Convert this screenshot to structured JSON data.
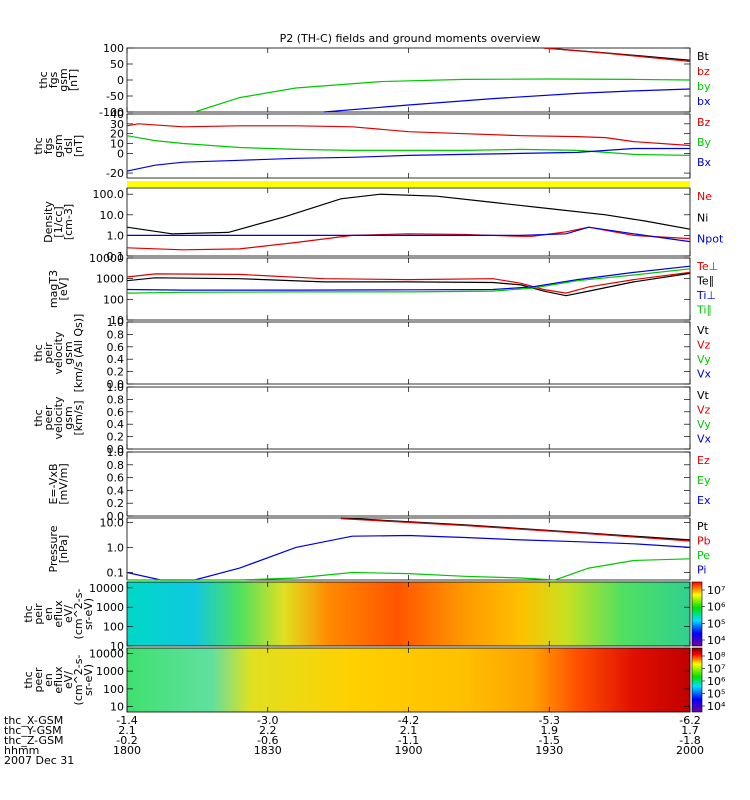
{
  "title": "P2 (TH-C) fields and ground moments overview",
  "colors": {
    "black": "#000000",
    "red": "#e00000",
    "green": "#00c800",
    "blue": "#0000e0",
    "yellow": "#ffff00"
  },
  "chart_data": {
    "type": "line",
    "x_ticks": [
      "1800",
      "1830",
      "1900",
      "1930",
      "2000"
    ],
    "footer": {
      "rows": [
        {
          "label": "thc_X-GSM",
          "values": [
            "-1.4",
            "-3.0",
            "-4.2",
            "-5.3",
            "-6.2"
          ]
        },
        {
          "label": "thc_Y-GSM",
          "values": [
            "2.1",
            "2.2",
            "2.1",
            "1.9",
            "1.7"
          ]
        },
        {
          "label": "thc_Z-GSM",
          "values": [
            "-0.2",
            "-0.6",
            "-1.1",
            "-1.5",
            "-1.8"
          ]
        },
        {
          "label": "hhmm",
          "values": [
            "1800",
            "1830",
            "1900",
            "1930",
            "2000"
          ]
        }
      ],
      "date": "2007 Dec 31"
    },
    "panels": [
      {
        "id": "fgs_gsm",
        "ylabel": [
          "thc",
          "fgs",
          "gsm",
          "[nT]"
        ],
        "ylim": [
          -100,
          100
        ],
        "yticks": [
          "100",
          "50",
          "0",
          "-50",
          "-100"
        ],
        "legend": [
          {
            "label": "Bt",
            "color": "black"
          },
          {
            "label": "bz",
            "color": "red"
          },
          {
            "label": "by",
            "color": "green"
          },
          {
            "label": "bx",
            "color": "blue"
          }
        ],
        "series": [
          {
            "name": "Bt",
            "color": "black",
            "x": [
              0.74,
              0.85,
              1.0
            ],
            "y": [
              100,
              85,
              62
            ]
          },
          {
            "name": "bz",
            "color": "red",
            "x": [
              0.74,
              0.85,
              1.0
            ],
            "y": [
              100,
              84,
              58
            ]
          },
          {
            "name": "by",
            "color": "green",
            "x": [
              0.12,
              0.2,
              0.3,
              0.45,
              0.6,
              0.75,
              0.9,
              1.0
            ],
            "y": [
              -100,
              -55,
              -25,
              -5,
              2,
              3,
              2,
              0
            ]
          },
          {
            "name": "bx",
            "color": "blue",
            "x": [
              0.35,
              0.5,
              0.65,
              0.8,
              0.9,
              1.0
            ],
            "y": [
              -100,
              -78,
              -58,
              -42,
              -34,
              -28
            ]
          }
        ]
      },
      {
        "id": "fgs_dsl",
        "ylabel": [
          "thc",
          "fgs",
          "gsm",
          "dsl",
          "[nT]"
        ],
        "ylim": [
          -25,
          40
        ],
        "yticks": [
          "40",
          "30",
          "20",
          "10",
          "0",
          "-20"
        ],
        "legend": [
          {
            "label": "Bz",
            "color": "red"
          },
          {
            "label": "By",
            "color": "green"
          },
          {
            "label": "Bx",
            "color": "blue"
          }
        ],
        "series": [
          {
            "name": "Bz",
            "color": "red",
            "x": [
              0.0,
              0.02,
              0.1,
              0.2,
              0.3,
              0.4,
              0.5,
              0.6,
              0.7,
              0.8,
              0.85,
              0.9,
              1.0
            ],
            "y": [
              28,
              30,
              27,
              28,
              28,
              27,
              22,
              20,
              18,
              17,
              16,
              12,
              8
            ]
          },
          {
            "name": "By",
            "color": "green",
            "x": [
              0.0,
              0.05,
              0.1,
              0.2,
              0.3,
              0.4,
              0.5,
              0.6,
              0.7,
              0.8,
              0.9,
              1.0
            ],
            "y": [
              18,
              13,
              10,
              6,
              4,
              3,
              3,
              3,
              4,
              3,
              -1,
              -2
            ]
          },
          {
            "name": "Bx",
            "color": "blue",
            "x": [
              0.0,
              0.05,
              0.1,
              0.2,
              0.3,
              0.4,
              0.5,
              0.6,
              0.7,
              0.8,
              0.9,
              1.0
            ],
            "y": [
              -18,
              -12,
              -9,
              -7,
              -5,
              -4,
              -2,
              -1,
              0,
              1,
              5,
              5
            ]
          }
        ]
      },
      {
        "id": "density",
        "ylabel": [
          "Density",
          "[1/cc]",
          "[cm-3]"
        ],
        "log": true,
        "ylim": [
          0.1,
          200
        ],
        "yticks": [
          "100.0",
          "10.0",
          "1.0",
          "0.1"
        ],
        "legend": [
          {
            "label": "Ne",
            "color": "red"
          },
          {
            "label": "Ni",
            "color": "black"
          },
          {
            "label": "Npot",
            "color": "blue"
          }
        ],
        "series": [
          {
            "name": "Ni",
            "color": "black",
            "x": [
              0.0,
              0.08,
              0.18,
              0.28,
              0.38,
              0.45,
              0.55,
              0.65,
              0.75,
              0.85,
              0.92,
              1.0
            ],
            "y": [
              2.5,
              1.2,
              1.4,
              8,
              60,
              100,
              80,
              40,
              20,
              10,
              5,
              2
            ]
          },
          {
            "name": "Ne",
            "color": "red",
            "x": [
              0.0,
              0.1,
              0.2,
              0.3,
              0.4,
              0.5,
              0.6,
              0.7,
              0.72,
              0.78,
              0.82,
              0.9,
              1.0
            ],
            "y": [
              0.25,
              0.2,
              0.22,
              0.45,
              1.0,
              1.2,
              1.1,
              0.9,
              0.9,
              1.5,
              2.5,
              1.0,
              0.7
            ]
          },
          {
            "name": "Npot",
            "color": "blue",
            "x": [
              0.0,
              0.7,
              0.78,
              0.82,
              0.9,
              1.0
            ],
            "y": [
              1.0,
              1.0,
              1.2,
              2.5,
              1.2,
              0.5
            ]
          }
        ]
      },
      {
        "id": "temp",
        "ylabel": [
          "magT3",
          "[eV]"
        ],
        "log": true,
        "ylim": [
          10,
          10000
        ],
        "yticks": [
          "10000",
          "1000",
          "100",
          "10"
        ],
        "legend": [
          {
            "label": "Te⊥",
            "color": "red"
          },
          {
            "label": "Te∥",
            "color": "black"
          },
          {
            "label": "Ti⊥",
            "color": "blue"
          },
          {
            "label": "Ti∥",
            "color": "green"
          }
        ],
        "series": [
          {
            "name": "Te⊥",
            "color": "red",
            "x": [
              0.0,
              0.05,
              0.2,
              0.35,
              0.5,
              0.65,
              0.7,
              0.74,
              0.78,
              0.82,
              0.9,
              1.0
            ],
            "y": [
              1200,
              1700,
              1600,
              1000,
              900,
              1000,
              600,
              300,
              200,
              400,
              900,
              2000
            ]
          },
          {
            "name": "Te∥",
            "color": "black",
            "x": [
              0.0,
              0.05,
              0.2,
              0.35,
              0.5,
              0.65,
              0.7,
              0.74,
              0.78,
              0.82,
              0.9,
              1.0
            ],
            "y": [
              800,
              1100,
              1000,
              700,
              700,
              650,
              500,
              250,
              150,
              250,
              700,
              1800
            ]
          },
          {
            "name": "Ti⊥",
            "color": "blue",
            "x": [
              0.0,
              0.1,
              0.3,
              0.5,
              0.65,
              0.72,
              0.8,
              0.9,
              1.0
            ],
            "y": [
              300,
              280,
              280,
              290,
              300,
              400,
              900,
              2000,
              4000
            ]
          },
          {
            "name": "Ti∥",
            "color": "green",
            "x": [
              0.0,
              0.1,
              0.3,
              0.5,
              0.65,
              0.72,
              0.8,
              0.9,
              1.0
            ],
            "y": [
              200,
              220,
              230,
              230,
              250,
              350,
              800,
              1500,
              3000
            ]
          }
        ]
      },
      {
        "id": "peir_vel",
        "ylabel": [
          "thc",
          "peir",
          "velocity",
          "gsm",
          "[km/s (All Qs)]"
        ],
        "ylim": [
          0,
          1
        ],
        "yticks": [
          "1.0",
          "0.8",
          "0.6",
          "0.4",
          "0.2",
          "0.0"
        ],
        "legend": [
          {
            "label": "Vt",
            "color": "black"
          },
          {
            "label": "Vz",
            "color": "red"
          },
          {
            "label": "Vy",
            "color": "green"
          },
          {
            "label": "Vx",
            "color": "blue"
          }
        ],
        "series": []
      },
      {
        "id": "peer_vel",
        "ylabel": [
          "thc",
          "peer",
          "velocity",
          "gsm",
          "[km/s]"
        ],
        "ylim": [
          0,
          1
        ],
        "yticks": [
          "1.0",
          "0.8",
          "0.6",
          "0.4",
          "0.2",
          "0.0"
        ],
        "legend": [
          {
            "label": "Vt",
            "color": "black"
          },
          {
            "label": "Vz",
            "color": "red"
          },
          {
            "label": "Vy",
            "color": "green"
          },
          {
            "label": "Vx",
            "color": "blue"
          }
        ],
        "series": []
      },
      {
        "id": "efield",
        "ylabel": [
          "E=-VxB",
          "[mV/m]"
        ],
        "ylim": [
          0,
          1
        ],
        "yticks": [
          "1.0",
          "0.8",
          "0.6",
          "0.4",
          "0.2",
          "0.0"
        ],
        "legend": [
          {
            "label": "Ez",
            "color": "red"
          },
          {
            "label": "Ey",
            "color": "green"
          },
          {
            "label": "Ex",
            "color": "blue"
          }
        ],
        "series": []
      },
      {
        "id": "pressure",
        "ylabel": [
          "Pressure",
          "[nPa]"
        ],
        "log": true,
        "ylim": [
          0.05,
          15
        ],
        "yticks": [
          "10.0",
          "1.0",
          "0.1"
        ],
        "legend": [
          {
            "label": "Pt",
            "color": "black"
          },
          {
            "label": "Pb",
            "color": "red"
          },
          {
            "label": "Pe",
            "color": "green"
          },
          {
            "label": "Pi",
            "color": "blue"
          }
        ],
        "series": [
          {
            "name": "Pt",
            "color": "black",
            "x": [
              0.38,
              0.6,
              0.8,
              1.0
            ],
            "y": [
              15,
              8,
              4,
              2
            ]
          },
          {
            "name": "Pb",
            "color": "red",
            "x": [
              0.38,
              0.6,
              0.8,
              1.0
            ],
            "y": [
              14,
              7.5,
              3.8,
              1.8
            ]
          },
          {
            "name": "Pi",
            "color": "blue",
            "x": [
              0.0,
              0.06,
              0.12,
              0.2,
              0.3,
              0.4,
              0.5,
              0.6,
              0.7,
              0.8,
              0.9,
              1.0
            ],
            "y": [
              0.1,
              0.05,
              0.05,
              0.15,
              1.0,
              2.8,
              3.0,
              2.5,
              2.0,
              1.7,
              1.4,
              1.0
            ]
          },
          {
            "name": "Pe",
            "color": "green",
            "x": [
              0.0,
              0.1,
              0.2,
              0.3,
              0.4,
              0.5,
              0.6,
              0.7,
              0.76,
              0.82,
              0.9,
              1.0
            ],
            "y": [
              0.05,
              0.05,
              0.05,
              0.06,
              0.1,
              0.09,
              0.07,
              0.06,
              0.05,
              0.15,
              0.3,
              0.35
            ]
          }
        ]
      },
      {
        "id": "peir_spec",
        "ylabel": [
          "thc",
          "peir",
          "en",
          "eflux",
          "eV/",
          "(cm^2-s-",
          "sr-eV)"
        ],
        "type": "heatmap",
        "log": true,
        "ylim": [
          10,
          20000
        ],
        "yticks": [
          "10000",
          "1000",
          "100",
          "10"
        ],
        "colorbar_ticks": [
          "10⁷",
          "10⁶",
          "10⁵",
          "10⁴"
        ],
        "columns": [
          {
            "x": 0.0,
            "color": "#00d8c8"
          },
          {
            "x": 0.12,
            "color": "#10c8e0"
          },
          {
            "x": 0.2,
            "color": "#50e060"
          },
          {
            "x": 0.28,
            "color": "#e0e020"
          },
          {
            "x": 0.36,
            "color": "#ff8800"
          },
          {
            "x": 0.48,
            "color": "#ff5500"
          },
          {
            "x": 0.6,
            "color": "#ff9900"
          },
          {
            "x": 0.7,
            "color": "#ffc000"
          },
          {
            "x": 0.78,
            "color": "#c8e020"
          },
          {
            "x": 0.88,
            "color": "#50e060"
          },
          {
            "x": 1.0,
            "color": "#30d090"
          }
        ]
      },
      {
        "id": "peer_spec",
        "ylabel": [
          "thc",
          "peer",
          "en",
          "eflux",
          "eV/",
          "(cm^2-s-",
          "sr-eV)"
        ],
        "type": "heatmap",
        "log": true,
        "ylim": [
          5,
          20000
        ],
        "yticks": [
          "10000",
          "1000",
          "100",
          "10"
        ],
        "colorbar_ticks": [
          "10⁸",
          "10⁷",
          "10⁶",
          "10⁵",
          "10⁴"
        ],
        "columns": [
          {
            "x": 0.0,
            "color": "#40e070"
          },
          {
            "x": 0.15,
            "color": "#60e0a0"
          },
          {
            "x": 0.22,
            "color": "#e0e020"
          },
          {
            "x": 0.4,
            "color": "#ffd000"
          },
          {
            "x": 0.6,
            "color": "#ffc000"
          },
          {
            "x": 0.72,
            "color": "#ffa000"
          },
          {
            "x": 0.8,
            "color": "#ff5000"
          },
          {
            "x": 0.9,
            "color": "#e01000"
          },
          {
            "x": 1.0,
            "color": "#c00000"
          }
        ]
      }
    ]
  }
}
